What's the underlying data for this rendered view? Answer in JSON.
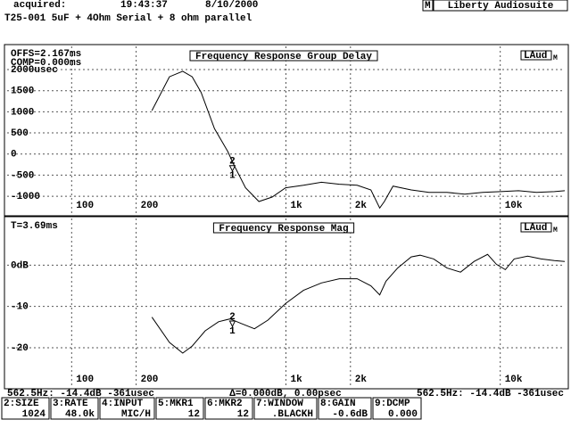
{
  "header": {
    "acquired_label": "acquired:",
    "time": "19:43:37",
    "date": "8/10/2000",
    "description": "T25-001 5uF + 4Ohm Serial + 8 ohm parallel",
    "app_mode": "M",
    "app_name": "Liberty Audiosuite"
  },
  "chart_data": [
    {
      "type": "line",
      "title": "Frequency Response Group Delay",
      "notes": [
        "OFFS=2.167ms",
        "COMP=0.000ms"
      ],
      "badge": "LAud",
      "badge_sub": "M",
      "log_x": true,
      "grid": true,
      "x": [
        237,
        286,
        330,
        365,
        402,
        464,
        535,
        572,
        648,
        748,
        862,
        996,
        1208,
        1464,
        1776,
        2150,
        2490,
        2740,
        2880,
        3160,
        3840,
        4650,
        5640,
        6830,
        8280,
        10040,
        12170,
        14760,
        17900,
        20000
      ],
      "series": [
        {
          "color": "#000000",
          "values": [
            1030,
            1830,
            1960,
            1830,
            1460,
            600,
            60,
            -260,
            -800,
            -1125,
            -1020,
            -800,
            -740,
            -670,
            -715,
            -740,
            -850,
            -1280,
            -1125,
            -760,
            -850,
            -910,
            -910,
            -950,
            -910,
            -890,
            -870,
            -910,
            -890,
            -870
          ]
        }
      ],
      "xlim": [
        50,
        20000
      ],
      "xticks": [
        100,
        200,
        {
          "value": 1000,
          "label": "1k"
        },
        {
          "value": 2000,
          "label": "2k"
        },
        {
          "value": 10000,
          "label": "10k"
        }
      ],
      "ylim": [
        -1400,
        2550
      ],
      "yticks": [
        {
          "value": 2000,
          "label": "2000usec"
        },
        1500,
        1000,
        500,
        0,
        -500,
        -1000
      ],
      "marker": {
        "x": 562.5,
        "y": -361,
        "labels": [
          "2",
          "1"
        ]
      }
    },
    {
      "type": "line",
      "title": "Frequency Response Mag",
      "notes": [
        "T=3.69ms"
      ],
      "badge": "LAud",
      "badge_sub": "M",
      "log_x": true,
      "grid": true,
      "x": [
        237,
        286,
        330,
        365,
        420,
        485,
        549,
        617,
        713,
        824,
        996,
        1208,
        1464,
        1776,
        2150,
        2490,
        2740,
        2930,
        3320,
        3840,
        4230,
        4890,
        5640,
        6530,
        7550,
        8730,
        9600,
        10560,
        11610,
        13420,
        15520,
        17900,
        20000
      ],
      "series": [
        {
          "color": "#000000",
          "values": [
            -12.6,
            -18.7,
            -21.3,
            -19.6,
            -15.9,
            -13.7,
            -13.0,
            -14.1,
            -15.4,
            -13.3,
            -9.3,
            -6.1,
            -4.3,
            -3.3,
            -3.3,
            -5.0,
            -7.2,
            -3.9,
            -0.7,
            2.0,
            2.4,
            1.5,
            -0.7,
            -1.7,
            0.9,
            2.6,
            0.2,
            -1.1,
            1.5,
            2.2,
            1.5,
            1.1,
            0.9
          ]
        }
      ],
      "xlim": [
        50,
        20000
      ],
      "xticks": [
        100,
        200,
        {
          "value": 1000,
          "label": "1k"
        },
        {
          "value": 2000,
          "label": "2k"
        },
        {
          "value": 10000,
          "label": "10k"
        }
      ],
      "ylim": [
        -29.5,
        11.3
      ],
      "yticks": [
        {
          "value": 0,
          "label": "0dB"
        },
        -10,
        -20
      ],
      "marker": {
        "x": 562.5,
        "y": -14.4,
        "labels": [
          "2",
          "1"
        ]
      }
    }
  ],
  "status": {
    "left": "562.5Hz: -14.4dB -361usec",
    "center": "∆=0.000dB, 0.00psec",
    "right": "562.5Hz: -14.4dB -361usec"
  },
  "function_keys": [
    {
      "label": "2:SIZE",
      "value": "1024"
    },
    {
      "label": "3:RATE",
      "value": "48.0k"
    },
    {
      "label": "4:INPUT",
      "value": "MIC/H"
    },
    {
      "label": "5:MKR1",
      "value": "12"
    },
    {
      "label": "6:MKR2",
      "value": "12"
    },
    {
      "label": "7:WINDOW",
      "value": ".BLACKH"
    },
    {
      "label": "8:GAIN",
      "value": "-0.6dB"
    },
    {
      "label": "9:DCMP",
      "value": "0.000"
    }
  ]
}
